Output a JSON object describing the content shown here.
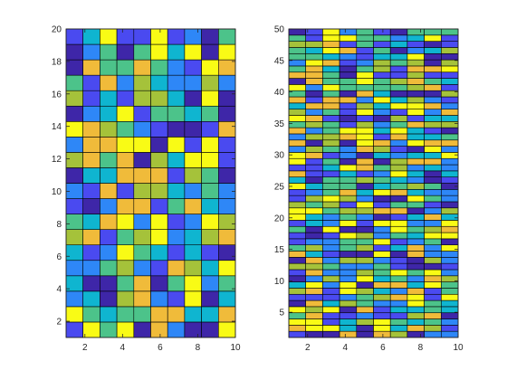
{
  "chart_data": [
    {
      "type": "heatmap",
      "title": "",
      "xlabel": "",
      "ylabel": "",
      "grid": true,
      "legend": "none",
      "xlim": [
        1,
        10
      ],
      "ylim": [
        1,
        20
      ],
      "columns": 10,
      "rows": 20,
      "xticks": [
        "2",
        "4",
        "6",
        "8",
        "10"
      ],
      "yticks": [
        "2",
        "4",
        "6",
        "8",
        "10",
        "12",
        "14",
        "16",
        "18",
        "20"
      ],
      "seed": 7
    },
    {
      "type": "heatmap",
      "title": "",
      "xlabel": "",
      "ylabel": "",
      "grid": true,
      "legend": "none",
      "xlim": [
        1,
        10
      ],
      "ylim": [
        1,
        50
      ],
      "columns": 10,
      "rows": 50,
      "xticks": [
        "2",
        "4",
        "6",
        "8",
        "10"
      ],
      "yticks": [
        "5",
        "10",
        "15",
        "20",
        "25",
        "30",
        "35",
        "40",
        "45",
        "50"
      ],
      "seed": 31
    }
  ],
  "colormap": [
    "#3e26a8",
    "#4a4af0",
    "#2e87f7",
    "#0fb5d0",
    "#4cc38a",
    "#a5c23a",
    "#f0bb3a",
    "#f9fb15"
  ],
  "axis_color": "#262626"
}
